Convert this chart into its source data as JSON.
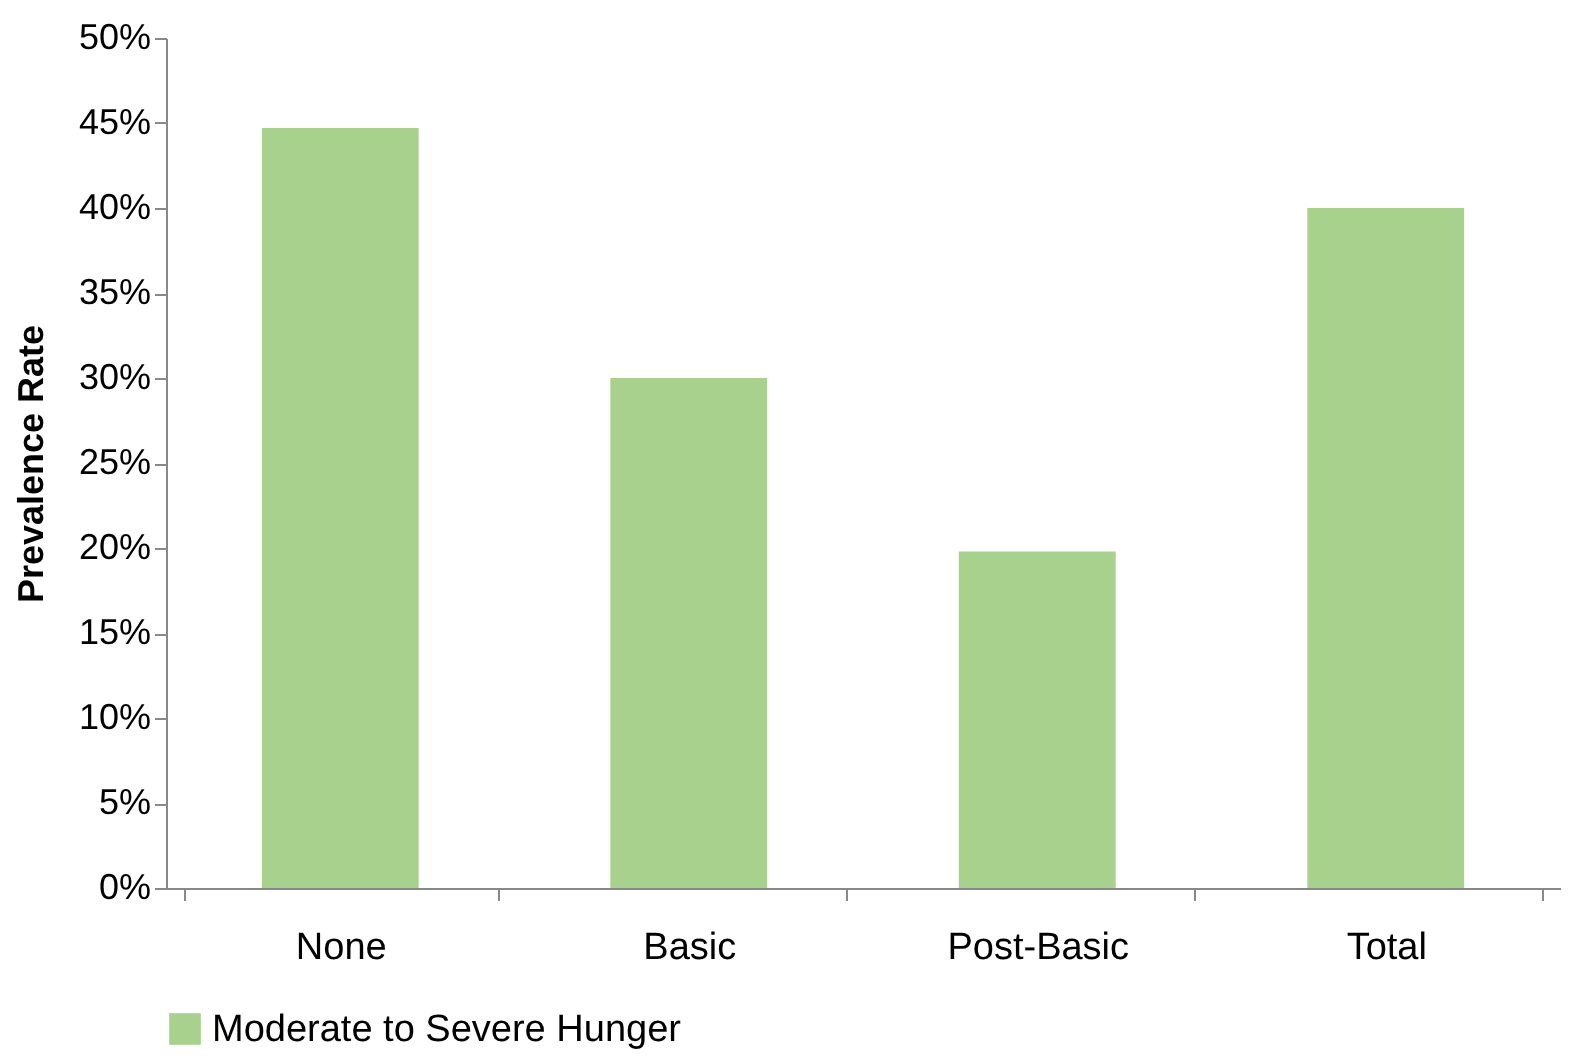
{
  "chart_data": {
    "type": "bar",
    "ylabel": "Prevalence Rate",
    "categories": [
      "None",
      "Basic",
      "Post-Basic",
      "Total"
    ],
    "series": [
      {
        "name": "Moderate to Severe Hunger",
        "color": "#a9d18e",
        "values": [
          44.7,
          30,
          19.8,
          40
        ]
      }
    ],
    "ylim": [
      0,
      50
    ],
    "yticks": [
      {
        "value": 0,
        "label": "0%"
      },
      {
        "value": 5,
        "label": "5%"
      },
      {
        "value": 10,
        "label": "10%"
      },
      {
        "value": 15,
        "label": "15%"
      },
      {
        "value": 20,
        "label": "20%"
      },
      {
        "value": 25,
        "label": "25%"
      },
      {
        "value": 30,
        "label": "30%"
      },
      {
        "value": 35,
        "label": "35%"
      },
      {
        "value": 40,
        "label": "40%"
      },
      {
        "value": 45,
        "label": "45%"
      },
      {
        "value": 50,
        "label": "50%"
      }
    ],
    "grid": false,
    "legend": "bottom"
  }
}
